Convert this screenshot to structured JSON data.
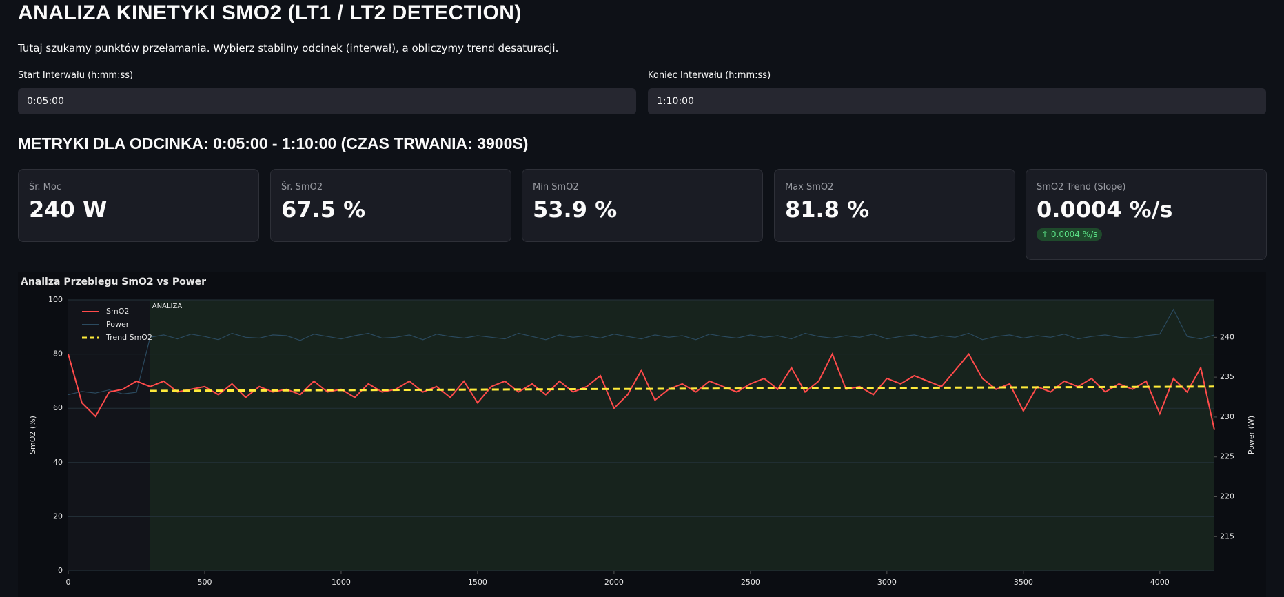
{
  "header": {
    "title": "ANALIZA KINETYKI SMO2 (LT1 / LT2 DETECTION)",
    "description": "Tutaj szukamy punktów przełamania. Wybierz stabilny odcinek (interwał), a obliczymy trend desaturacji."
  },
  "inputs": [
    {
      "label": "Start Interwału (h:mm:ss)",
      "value": "0:05:00"
    },
    {
      "label": "Koniec Interwału (h:mm:ss)",
      "value": "1:10:00"
    }
  ],
  "section_title": "METRYKI DLA ODCINKA: 0:05:00 - 1:10:00 (CZAS TRWANIA: 3900S)",
  "metrics": [
    {
      "label": "Śr. Moc",
      "value": "240 W"
    },
    {
      "label": "Śr. SmO2",
      "value": "67.5 %"
    },
    {
      "label": "Min SmO2",
      "value": "53.9 %"
    },
    {
      "label": "Max SmO2",
      "value": "81.8 %"
    },
    {
      "label": "SmO2 Trend (Slope)",
      "value": "0.0004 %/s",
      "delta": "0.0004 %/s"
    }
  ],
  "chart_data": {
    "type": "line",
    "title": "Analiza Przebiegu SmO2 vs Power",
    "y_label": "SmO2 (%)",
    "y2_label": "Power (W)",
    "shaded_region": {
      "label": "ANALIZA",
      "x": [
        300,
        4200
      ]
    },
    "x": [
      0,
      50,
      100,
      150,
      200,
      250,
      300,
      350,
      400,
      450,
      500,
      550,
      600,
      650,
      700,
      750,
      800,
      850,
      900,
      950,
      1000,
      1050,
      1100,
      1150,
      1200,
      1250,
      1300,
      1350,
      1400,
      1450,
      1500,
      1550,
      1600,
      1650,
      1700,
      1750,
      1800,
      1850,
      1900,
      1950,
      2000,
      2050,
      2100,
      2150,
      2200,
      2250,
      2300,
      2350,
      2400,
      2450,
      2500,
      2550,
      2600,
      2650,
      2700,
      2750,
      2800,
      2850,
      2900,
      2950,
      3000,
      3050,
      3100,
      3150,
      3200,
      3250,
      3300,
      3350,
      3400,
      3450,
      3500,
      3550,
      3600,
      3650,
      3700,
      3750,
      3800,
      3850,
      3900,
      3950,
      4000,
      4050,
      4100,
      4150,
      4200
    ],
    "series": [
      {
        "name": "SmO2",
        "color": "#ff4b4b",
        "values": [
          80,
          62,
          57,
          66,
          67,
          70,
          68,
          70,
          66,
          67,
          68,
          65,
          69,
          64,
          68,
          66,
          67,
          65,
          70,
          66,
          67,
          64,
          69,
          66,
          67,
          70,
          66,
          68,
          64,
          70,
          62,
          68,
          70,
          66,
          69,
          65,
          70,
          66,
          68,
          72,
          60,
          65,
          74,
          63,
          67,
          69,
          66,
          70,
          68,
          66,
          69,
          71,
          67,
          75,
          66,
          70,
          80,
          67,
          68,
          65,
          71,
          69,
          72,
          70,
          68,
          74,
          80,
          71,
          67,
          69,
          59,
          68,
          66,
          70,
          68,
          71,
          66,
          69,
          67,
          70,
          58,
          71,
          66,
          75,
          52
        ]
      },
      {
        "name": "Power",
        "color": "#2b4a5f",
        "axis": "y2",
        "values": [
          232.8,
          233.2,
          233.0,
          233.4,
          232.9,
          233.1,
          240.0,
          240.3,
          239.8,
          240.4,
          240.1,
          239.7,
          240.5,
          240.0,
          239.9,
          240.3,
          240.2,
          239.6,
          240.4,
          240.1,
          239.8,
          240.2,
          240.5,
          239.9,
          240.0,
          240.3,
          239.7,
          240.4,
          240.1,
          239.9,
          240.2,
          240.0,
          239.8,
          240.5,
          240.1,
          239.7,
          240.3,
          240.0,
          240.2,
          239.9,
          240.4,
          240.1,
          239.8,
          240.3,
          240.0,
          240.2,
          239.7,
          240.4,
          240.1,
          239.9,
          240.3,
          240.0,
          240.2,
          239.8,
          240.5,
          240.1,
          239.9,
          240.2,
          240.0,
          240.4,
          239.8,
          240.1,
          240.3,
          239.9,
          240.2,
          240.0,
          240.5,
          239.7,
          240.1,
          240.3,
          239.9,
          240.2,
          240.0,
          240.4,
          239.8,
          240.1,
          240.3,
          240.0,
          239.9,
          240.2,
          240.4,
          243.5,
          240.1,
          239.8,
          240.3
        ]
      },
      {
        "name": "Trend SmO2",
        "color": "#ffeb3b",
        "dashed": true,
        "x": [
          300,
          4200
        ],
        "values": [
          66.4,
          68.0
        ]
      }
    ],
    "xlim": [
      0,
      4200
    ],
    "xticks": [
      0,
      500,
      1000,
      1500,
      2000,
      2500,
      3000,
      3500,
      4000
    ],
    "ylim": [
      0,
      100
    ],
    "yticks": [
      0,
      20,
      40,
      60,
      80,
      100
    ],
    "y2lim": [
      210.7,
      244.7
    ],
    "y2ticks": [
      215,
      220,
      225,
      230,
      235,
      240
    ],
    "grid": true,
    "legend": "top-left"
  }
}
